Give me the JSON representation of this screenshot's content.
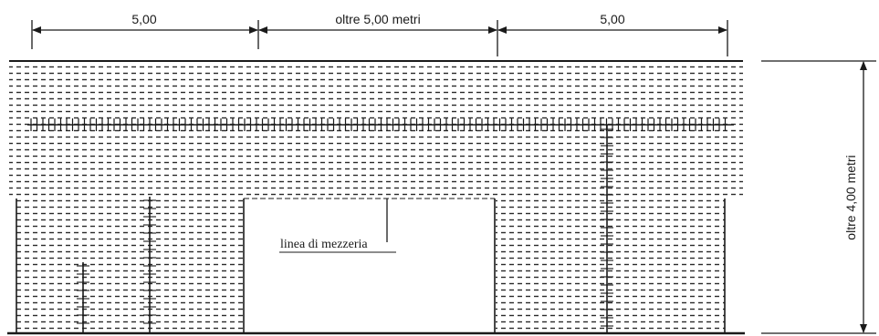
{
  "dimensions": {
    "left_width": "5,00",
    "middle_width": "oltre 5,00 metri",
    "right_width": "5,00",
    "height": "oltre 4,00 metri"
  },
  "labels": {
    "centerline": "linea di mezzeria"
  },
  "colors": {
    "line": "#1a1a1a",
    "hatch": "#2a2a2a",
    "background": "#ffffff"
  }
}
